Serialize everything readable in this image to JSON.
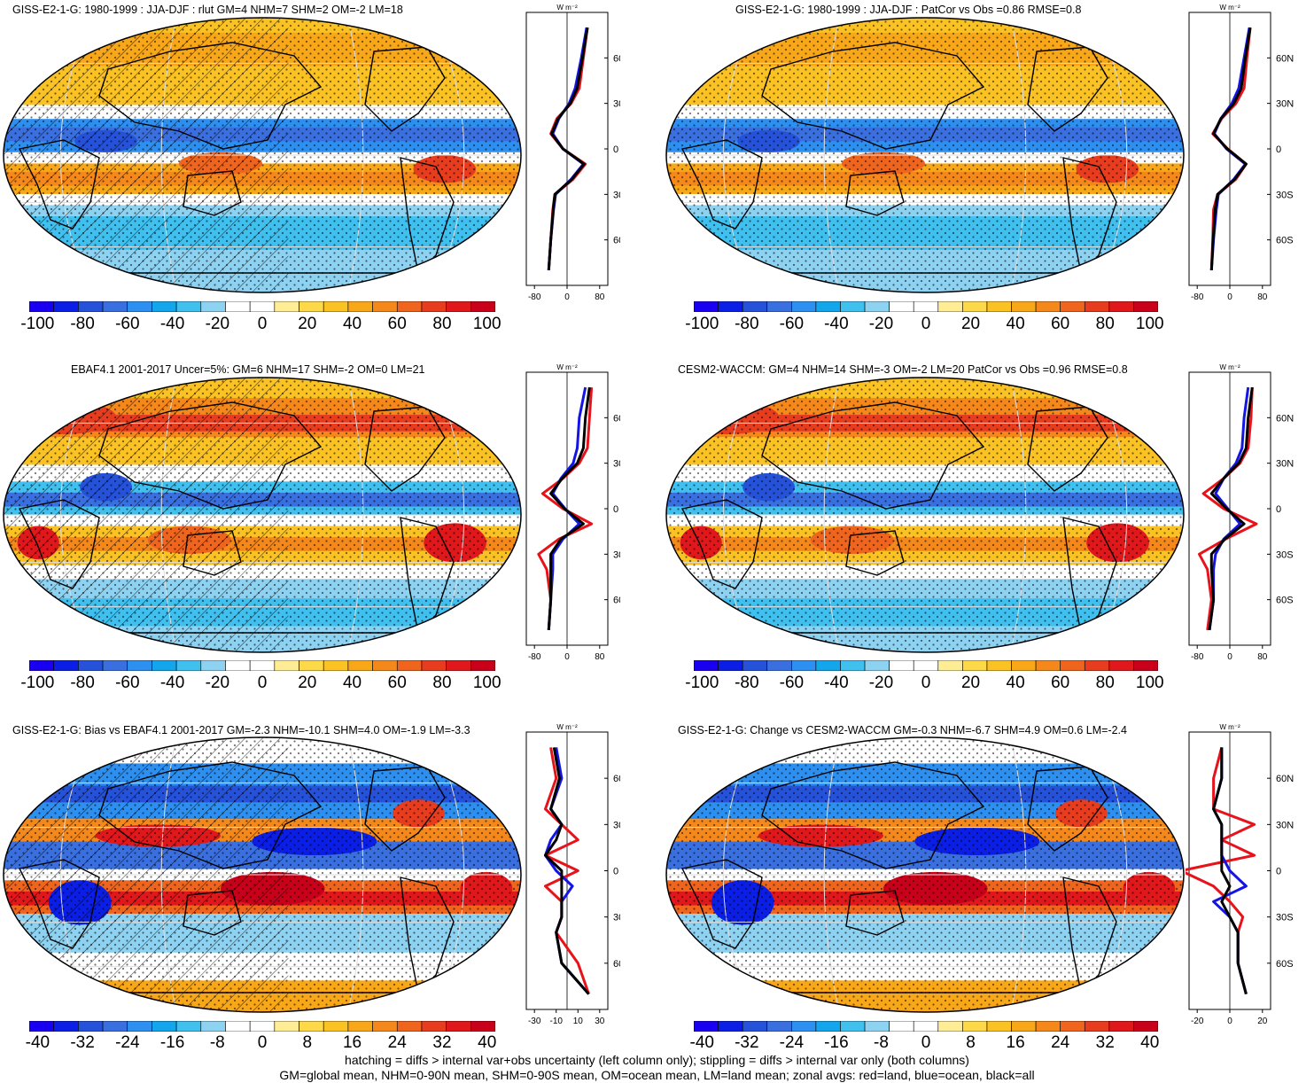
{
  "colors": {
    "palette": [
      "#1a00f0",
      "#0a1ee6",
      "#2552d9",
      "#3a6fe0",
      "#2d8ff0",
      "#14a6ec",
      "#40c0ef",
      "#8ed2f2",
      "#ffffff",
      "#ffffff",
      "#ffed95",
      "#fdd848",
      "#fbc224",
      "#f8a719",
      "#f5881a",
      "#f0651e",
      "#e83c1e",
      "#e0171b",
      "#c8001a"
    ],
    "zonal_land": "#e8121b",
    "zonal_ocean": "#1414e6",
    "zonal_all": "#000000"
  },
  "panels": [
    {
      "id": "p1",
      "title": "GISS-E2-1-G: 1980-1999 : JJA-DJF : rlut GM=4 NHM=7 SHM=2 OM=-2 LM=18",
      "pattern": "base",
      "hatch": true,
      "stipple": true,
      "zonal_unit": "W m⁻²",
      "zonal_xticks": [
        "-80",
        "0",
        "80"
      ],
      "zonal_lat_ticks": [
        "60N",
        "30N",
        "0",
        "30S",
        "60S"
      ],
      "colorbar_ticks": [
        "-100",
        "-80",
        "-60",
        "-40",
        "-20",
        "0",
        "20",
        "40",
        "60",
        "80",
        "100"
      ]
    },
    {
      "id": "p2",
      "title": "GISS-E2-1-G: 1980-1999 : JJA-DJF : PatCor vs Obs =0.86 RMSE=0.8",
      "pattern": "base",
      "hatch": false,
      "stipple": true,
      "zonal_unit": "W m⁻²",
      "zonal_xticks": [
        "-80",
        "0",
        "80"
      ],
      "zonal_lat_ticks": [
        "60N",
        "30N",
        "0",
        "30S",
        "60S"
      ],
      "colorbar_ticks": [
        "-100",
        "-80",
        "-60",
        "-40",
        "-20",
        "0",
        "20",
        "40",
        "60",
        "80",
        "100"
      ]
    },
    {
      "id": "p3",
      "title": "EBAF4.1 2001-2017 Uncer=5%: GM=6 NHM=17 SHM=-2 OM=0 LM=21",
      "pattern": "obs",
      "hatch": true,
      "stipple": true,
      "zonal_unit": "W m⁻²",
      "zonal_xticks": [
        "-80",
        "0",
        "80"
      ],
      "zonal_lat_ticks": [
        "60N",
        "30N",
        "0",
        "30S",
        "60S"
      ],
      "colorbar_ticks": [
        "-100",
        "-80",
        "-60",
        "-40",
        "-20",
        "0",
        "20",
        "40",
        "60",
        "80",
        "100"
      ]
    },
    {
      "id": "p4",
      "title": "CESM2-WACCM: GM=4 NHM=14 SHM=-3 OM=-2 LM=20 PatCor vs Obs =0.96 RMSE=0.8",
      "pattern": "obs",
      "hatch": false,
      "stipple": true,
      "zonal_unit": "W m⁻²",
      "zonal_xticks": [
        "-80",
        "0",
        "80"
      ],
      "zonal_lat_ticks": [
        "60N",
        "30N",
        "0",
        "30S",
        "60S"
      ],
      "colorbar_ticks": [
        "-100",
        "-80",
        "-60",
        "-40",
        "-20",
        "0",
        "20",
        "40",
        "60",
        "80",
        "100"
      ]
    },
    {
      "id": "p5",
      "title": "GISS-E2-1-G: Bias vs EBAF4.1 2001-2017 GM=-2.3 NHM=-10.1 SHM=4.0 OM=-1.9 LM=-3.3",
      "pattern": "bias",
      "hatch": true,
      "stipple": true,
      "zonal_unit": "W m⁻²",
      "zonal_xticks": [
        "-30",
        "-10",
        "10",
        "30"
      ],
      "zonal_lat_ticks": [
        "60N",
        "30N",
        "0",
        "30S",
        "60S"
      ],
      "colorbar_ticks": [
        "-40",
        "-32",
        "-24",
        "-16",
        "-8",
        "0",
        "8",
        "16",
        "24",
        "32",
        "40"
      ]
    },
    {
      "id": "p6",
      "title": "GISS-E2-1-G: Change vs CESM2-WACCM GM=-0.3 NHM=-6.7 SHM=4.9 OM=0.6 LM=-2.4",
      "pattern": "bias",
      "hatch": false,
      "stipple": true,
      "zonal_unit": "W m⁻²",
      "zonal_xticks": [
        "-20",
        "0",
        "20"
      ],
      "zonal_lat_ticks": [
        "60N",
        "30N",
        "0",
        "30S",
        "60S"
      ],
      "colorbar_ticks": [
        "-40",
        "-32",
        "-24",
        "-16",
        "-8",
        "0",
        "8",
        "16",
        "24",
        "32",
        "40"
      ]
    }
  ],
  "chart_data": [
    {
      "type": "heatmap",
      "title": "GISS-E2-1-G: 1980-1999 : JJA-DJF : rlut GM=4 NHM=7 SHM=2 OM=-2 LM=18",
      "zonal_profiles": {
        "lat": [
          80,
          60,
          40,
          30,
          20,
          10,
          0,
          -10,
          -20,
          -30,
          -40,
          -60,
          -80
        ],
        "land": [
          50,
          40,
          30,
          10,
          -25,
          -40,
          -10,
          45,
          15,
          -30,
          -35,
          -40,
          -45
        ],
        "ocean": [
          48,
          35,
          20,
          5,
          -20,
          -35,
          -10,
          40,
          10,
          -28,
          -33,
          -40,
          -45
        ],
        "all": [
          50,
          38,
          25,
          8,
          -22,
          -38,
          -10,
          42,
          12,
          -30,
          -34,
          -40,
          -45
        ]
      }
    },
    {
      "type": "heatmap",
      "title": "GISS-E2-1-G: 1980-1999 : JJA-DJF : PatCor vs Obs =0.86 RMSE=0.8",
      "zonal_profiles": {
        "lat": [
          80,
          60,
          40,
          30,
          20,
          10,
          0,
          -10,
          -20,
          -30,
          -40,
          -60,
          -80
        ],
        "land": [
          50,
          42,
          35,
          15,
          -20,
          -42,
          -5,
          40,
          15,
          -30,
          -40,
          -42,
          -45
        ],
        "ocean": [
          48,
          35,
          22,
          5,
          -22,
          -38,
          -8,
          38,
          10,
          -28,
          -33,
          -40,
          -45
        ],
        "all": [
          50,
          38,
          28,
          10,
          -22,
          -40,
          -6,
          40,
          12,
          -30,
          -36,
          -41,
          -45
        ]
      }
    },
    {
      "type": "heatmap",
      "title": "EBAF4.1 2001-2017 Uncer=5%: GM=6 NHM=17 SHM=-2 OM=0 LM=21",
      "zonal_profiles": {
        "lat": [
          80,
          60,
          40,
          30,
          20,
          10,
          0,
          -10,
          -20,
          -30,
          -40,
          -60,
          -80
        ],
        "land": [
          60,
          55,
          50,
          30,
          -10,
          -60,
          -10,
          60,
          -20,
          -70,
          -50,
          -40,
          -45
        ],
        "ocean": [
          45,
          30,
          25,
          15,
          -15,
          -35,
          -5,
          30,
          -10,
          -35,
          -35,
          -40,
          -45
        ],
        "all": [
          55,
          45,
          40,
          25,
          -12,
          -40,
          -6,
          40,
          -15,
          -40,
          -40,
          -40,
          -45
        ]
      }
    },
    {
      "type": "heatmap",
      "title": "CESM2-WACCM: GM=4 NHM=14 SHM=-3 OM=-2 LM=20 PatCor vs Obs =0.96 RMSE=0.8",
      "zonal_profiles": {
        "lat": [
          80,
          60,
          40,
          30,
          20,
          10,
          0,
          -10,
          -20,
          -30,
          -40,
          -60,
          -80
        ],
        "land": [
          55,
          52,
          45,
          25,
          -15,
          -65,
          -15,
          65,
          -10,
          -75,
          -55,
          -45,
          -55
        ],
        "ocean": [
          45,
          35,
          30,
          15,
          -15,
          -35,
          -5,
          25,
          -15,
          -35,
          -40,
          -40,
          -50
        ],
        "all": [
          55,
          45,
          40,
          22,
          -15,
          -45,
          -8,
          35,
          -12,
          -45,
          -45,
          -40,
          -50
        ]
      }
    },
    {
      "type": "heatmap",
      "title": "GISS-E2-1-G: Bias vs EBAF4.1 2001-2017 GM=-2.3 NHM=-10.1 SHM=4.0 OM=-1.9 LM=-3.3",
      "zonal_profiles": {
        "lat": [
          80,
          60,
          40,
          30,
          20,
          10,
          0,
          -10,
          -20,
          -30,
          -40,
          -60,
          -80
        ],
        "land": [
          -15,
          -10,
          -20,
          -5,
          10,
          -20,
          10,
          -20,
          -5,
          -5,
          -10,
          10,
          20
        ],
        "ocean": [
          -10,
          -5,
          -15,
          -5,
          -15,
          -20,
          -10,
          5,
          -5,
          -5,
          -10,
          -5,
          20
        ],
        "all": [
          -12,
          -7,
          -15,
          -5,
          -10,
          -20,
          -5,
          -5,
          -5,
          -5,
          -10,
          -5,
          20
        ]
      }
    },
    {
      "type": "heatmap",
      "title": "GISS-E2-1-G: Change vs CESM2-WACCM GM=-0.3 NHM=-6.7 SHM=4.9 OM=0.6 LM=-2.4",
      "zonal_profiles": {
        "lat": [
          80,
          60,
          40,
          30,
          20,
          10,
          0,
          -10,
          -20,
          -30,
          -40,
          -60,
          -80
        ],
        "land": [
          -5,
          -10,
          -10,
          15,
          -5,
          15,
          -30,
          -10,
          0,
          8,
          5,
          5,
          10
        ],
        "ocean": [
          -5,
          -5,
          -10,
          -5,
          -5,
          -5,
          0,
          10,
          -10,
          0,
          5,
          5,
          10
        ],
        "all": [
          -5,
          -5,
          -10,
          -5,
          -5,
          -5,
          -5,
          0,
          -5,
          0,
          5,
          5,
          10
        ]
      }
    }
  ],
  "footer": {
    "line1": "hatching = diffs > internal var+obs uncertainty (left column only); stippling = diffs > internal var only (both columns)",
    "line2": "GM=global mean, NHM=0-90N mean, SHM=0-90S mean, OM=ocean mean, LM=land mean; zonal avgs: red=land, blue=ocean, black=all"
  }
}
